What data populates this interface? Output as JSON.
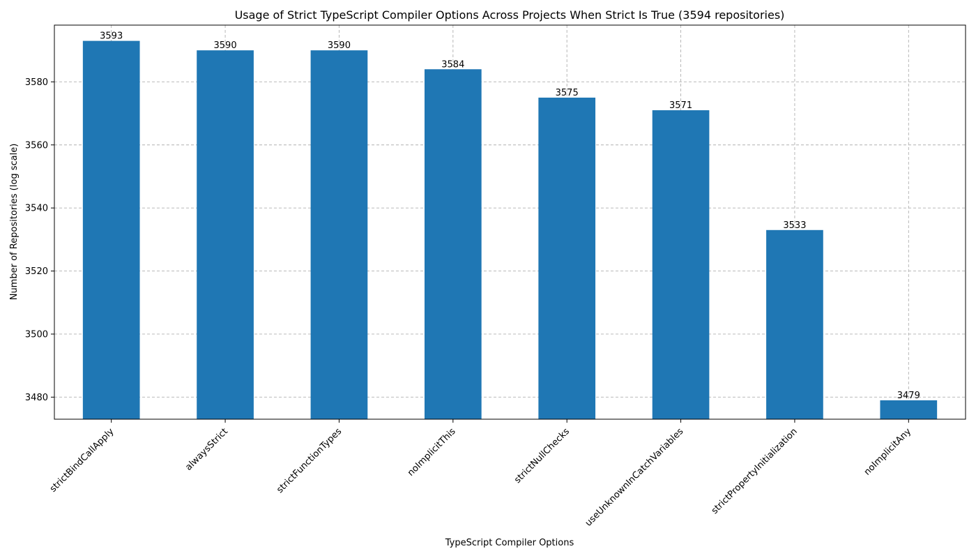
{
  "chart_data": {
    "type": "bar",
    "title": "Usage of Strict TypeScript Compiler Options Across Projects When Strict Is True (3594 repositories)",
    "xlabel": "TypeScript Compiler Options",
    "ylabel": "Number of Repositories (log scale)",
    "categories": [
      "strictBindCallApply",
      "alwaysStrict",
      "strictFunctionTypes",
      "noImplicitThis",
      "strictNullChecks",
      "useUnknownInCatchVariables",
      "strictPropertyInitialization",
      "noImplicitAny"
    ],
    "values": [
      3593,
      3590,
      3590,
      3584,
      3575,
      3571,
      3533,
      3479
    ],
    "yticks": [
      3480,
      3500,
      3520,
      3540,
      3560,
      3580
    ],
    "ylim": [
      3473,
      3598
    ],
    "grid": true,
    "bar_color": "#1f77b4"
  }
}
